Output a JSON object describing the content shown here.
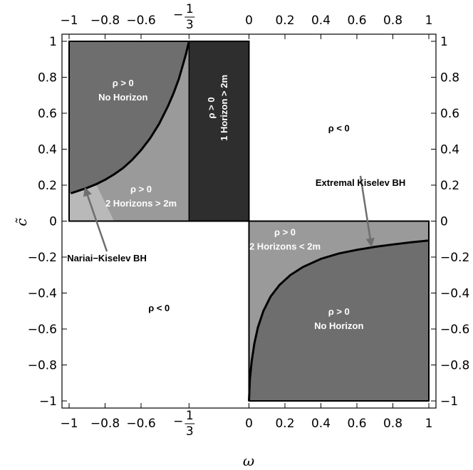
{
  "chart_data": {
    "type": "region-plot",
    "xlabel": "ω",
    "ylabel": "c̃",
    "xlim": [
      -1,
      1
    ],
    "ylim": [
      -1,
      1
    ],
    "x_ticks": [
      {
        "value": -1,
        "label": "−1"
      },
      {
        "value": -0.8,
        "label": "−0.8"
      },
      {
        "value": -0.6,
        "label": "−0.6"
      },
      {
        "value": -0.3333,
        "label": "−1/3",
        "num": "1",
        "den": "3"
      },
      {
        "value": 0,
        "label": "0"
      },
      {
        "value": 0.2,
        "label": "0.2"
      },
      {
        "value": 0.4,
        "label": "0.4"
      },
      {
        "value": 0.6,
        "label": "0.6"
      },
      {
        "value": 0.8,
        "label": "0.8"
      },
      {
        "value": 1,
        "label": "1"
      }
    ],
    "y_ticks": [
      {
        "value": 1,
        "label": "1"
      },
      {
        "value": 0.8,
        "label": "0.8"
      },
      {
        "value": 0.6,
        "label": "0.6"
      },
      {
        "value": 0.4,
        "label": "0.4"
      },
      {
        "value": 0.2,
        "label": "0.2"
      },
      {
        "value": 0,
        "label": "0"
      },
      {
        "value": -0.2,
        "label": "−0.2"
      },
      {
        "value": -0.4,
        "label": "−0.4"
      },
      {
        "value": -0.6,
        "label": "−0.6"
      },
      {
        "value": -0.8,
        "label": "−0.8"
      },
      {
        "value": -1,
        "label": "−1"
      }
    ],
    "regions": [
      {
        "name": "upper-left-no-horizon",
        "fill": "#6e6e6e",
        "labels": [
          "ρ > 0",
          "No Horizon"
        ]
      },
      {
        "name": "upper-left-two-horizons",
        "fill": "#9a9a9a",
        "labels": [
          "ρ > 0",
          "2 Horizons > 2m"
        ]
      },
      {
        "name": "upper-left-extremal-strip",
        "fill": "#b9b9b9"
      },
      {
        "name": "upper-middle-one-horizon",
        "fill": "#2e2e2e",
        "labels": [
          "ρ > 0",
          "1 Horizon > 2m"
        ]
      },
      {
        "name": "lower-right-two-horizons",
        "fill": "#9a9a9a",
        "labels": [
          "ρ > 0",
          "2 Horizons < 2m"
        ]
      },
      {
        "name": "lower-right-no-horizon",
        "fill": "#6e6e6e",
        "labels": [
          "ρ > 0",
          "No Horizon"
        ]
      }
    ],
    "negative_labels": [
      "ρ < 0",
      "ρ < 0"
    ],
    "curves": [
      {
        "name": "upper-left-boundary",
        "points": [
          [
            -0.99,
            0.155
          ],
          [
            -0.95,
            0.168
          ],
          [
            -0.9,
            0.185
          ],
          [
            -0.85,
            0.205
          ],
          [
            -0.8,
            0.23
          ],
          [
            -0.75,
            0.26
          ],
          [
            -0.7,
            0.295
          ],
          [
            -0.65,
            0.34
          ],
          [
            -0.6,
            0.395
          ],
          [
            -0.55,
            0.46
          ],
          [
            -0.5,
            0.54
          ],
          [
            -0.45,
            0.64
          ],
          [
            -0.42,
            0.71
          ],
          [
            -0.39,
            0.79
          ],
          [
            -0.37,
            0.86
          ],
          [
            -0.35,
            0.93
          ],
          [
            -0.3333,
            1.0
          ]
        ]
      },
      {
        "name": "lower-right-boundary",
        "points": [
          [
            0.0,
            -1.0
          ],
          [
            0.005,
            -0.88
          ],
          [
            0.015,
            -0.78
          ],
          [
            0.03,
            -0.68
          ],
          [
            0.05,
            -0.59
          ],
          [
            0.08,
            -0.5
          ],
          [
            0.12,
            -0.42
          ],
          [
            0.17,
            -0.355
          ],
          [
            0.23,
            -0.3
          ],
          [
            0.3,
            -0.255
          ],
          [
            0.4,
            -0.21
          ],
          [
            0.5,
            -0.18
          ],
          [
            0.6,
            -0.16
          ],
          [
            0.7,
            -0.143
          ],
          [
            0.8,
            -0.13
          ],
          [
            0.9,
            -0.118
          ],
          [
            1.0,
            -0.108
          ]
        ]
      }
    ],
    "annotations": [
      {
        "text": "Nariai−Kiselev BH",
        "arrow_from": [
          -0.79,
          -0.2
        ],
        "arrow_to": [
          -0.91,
          0.18
        ]
      },
      {
        "text": "Extremal Kiselev BH",
        "arrow_from": [
          0.62,
          0.22
        ],
        "arrow_to": [
          0.68,
          -0.135
        ]
      }
    ]
  }
}
